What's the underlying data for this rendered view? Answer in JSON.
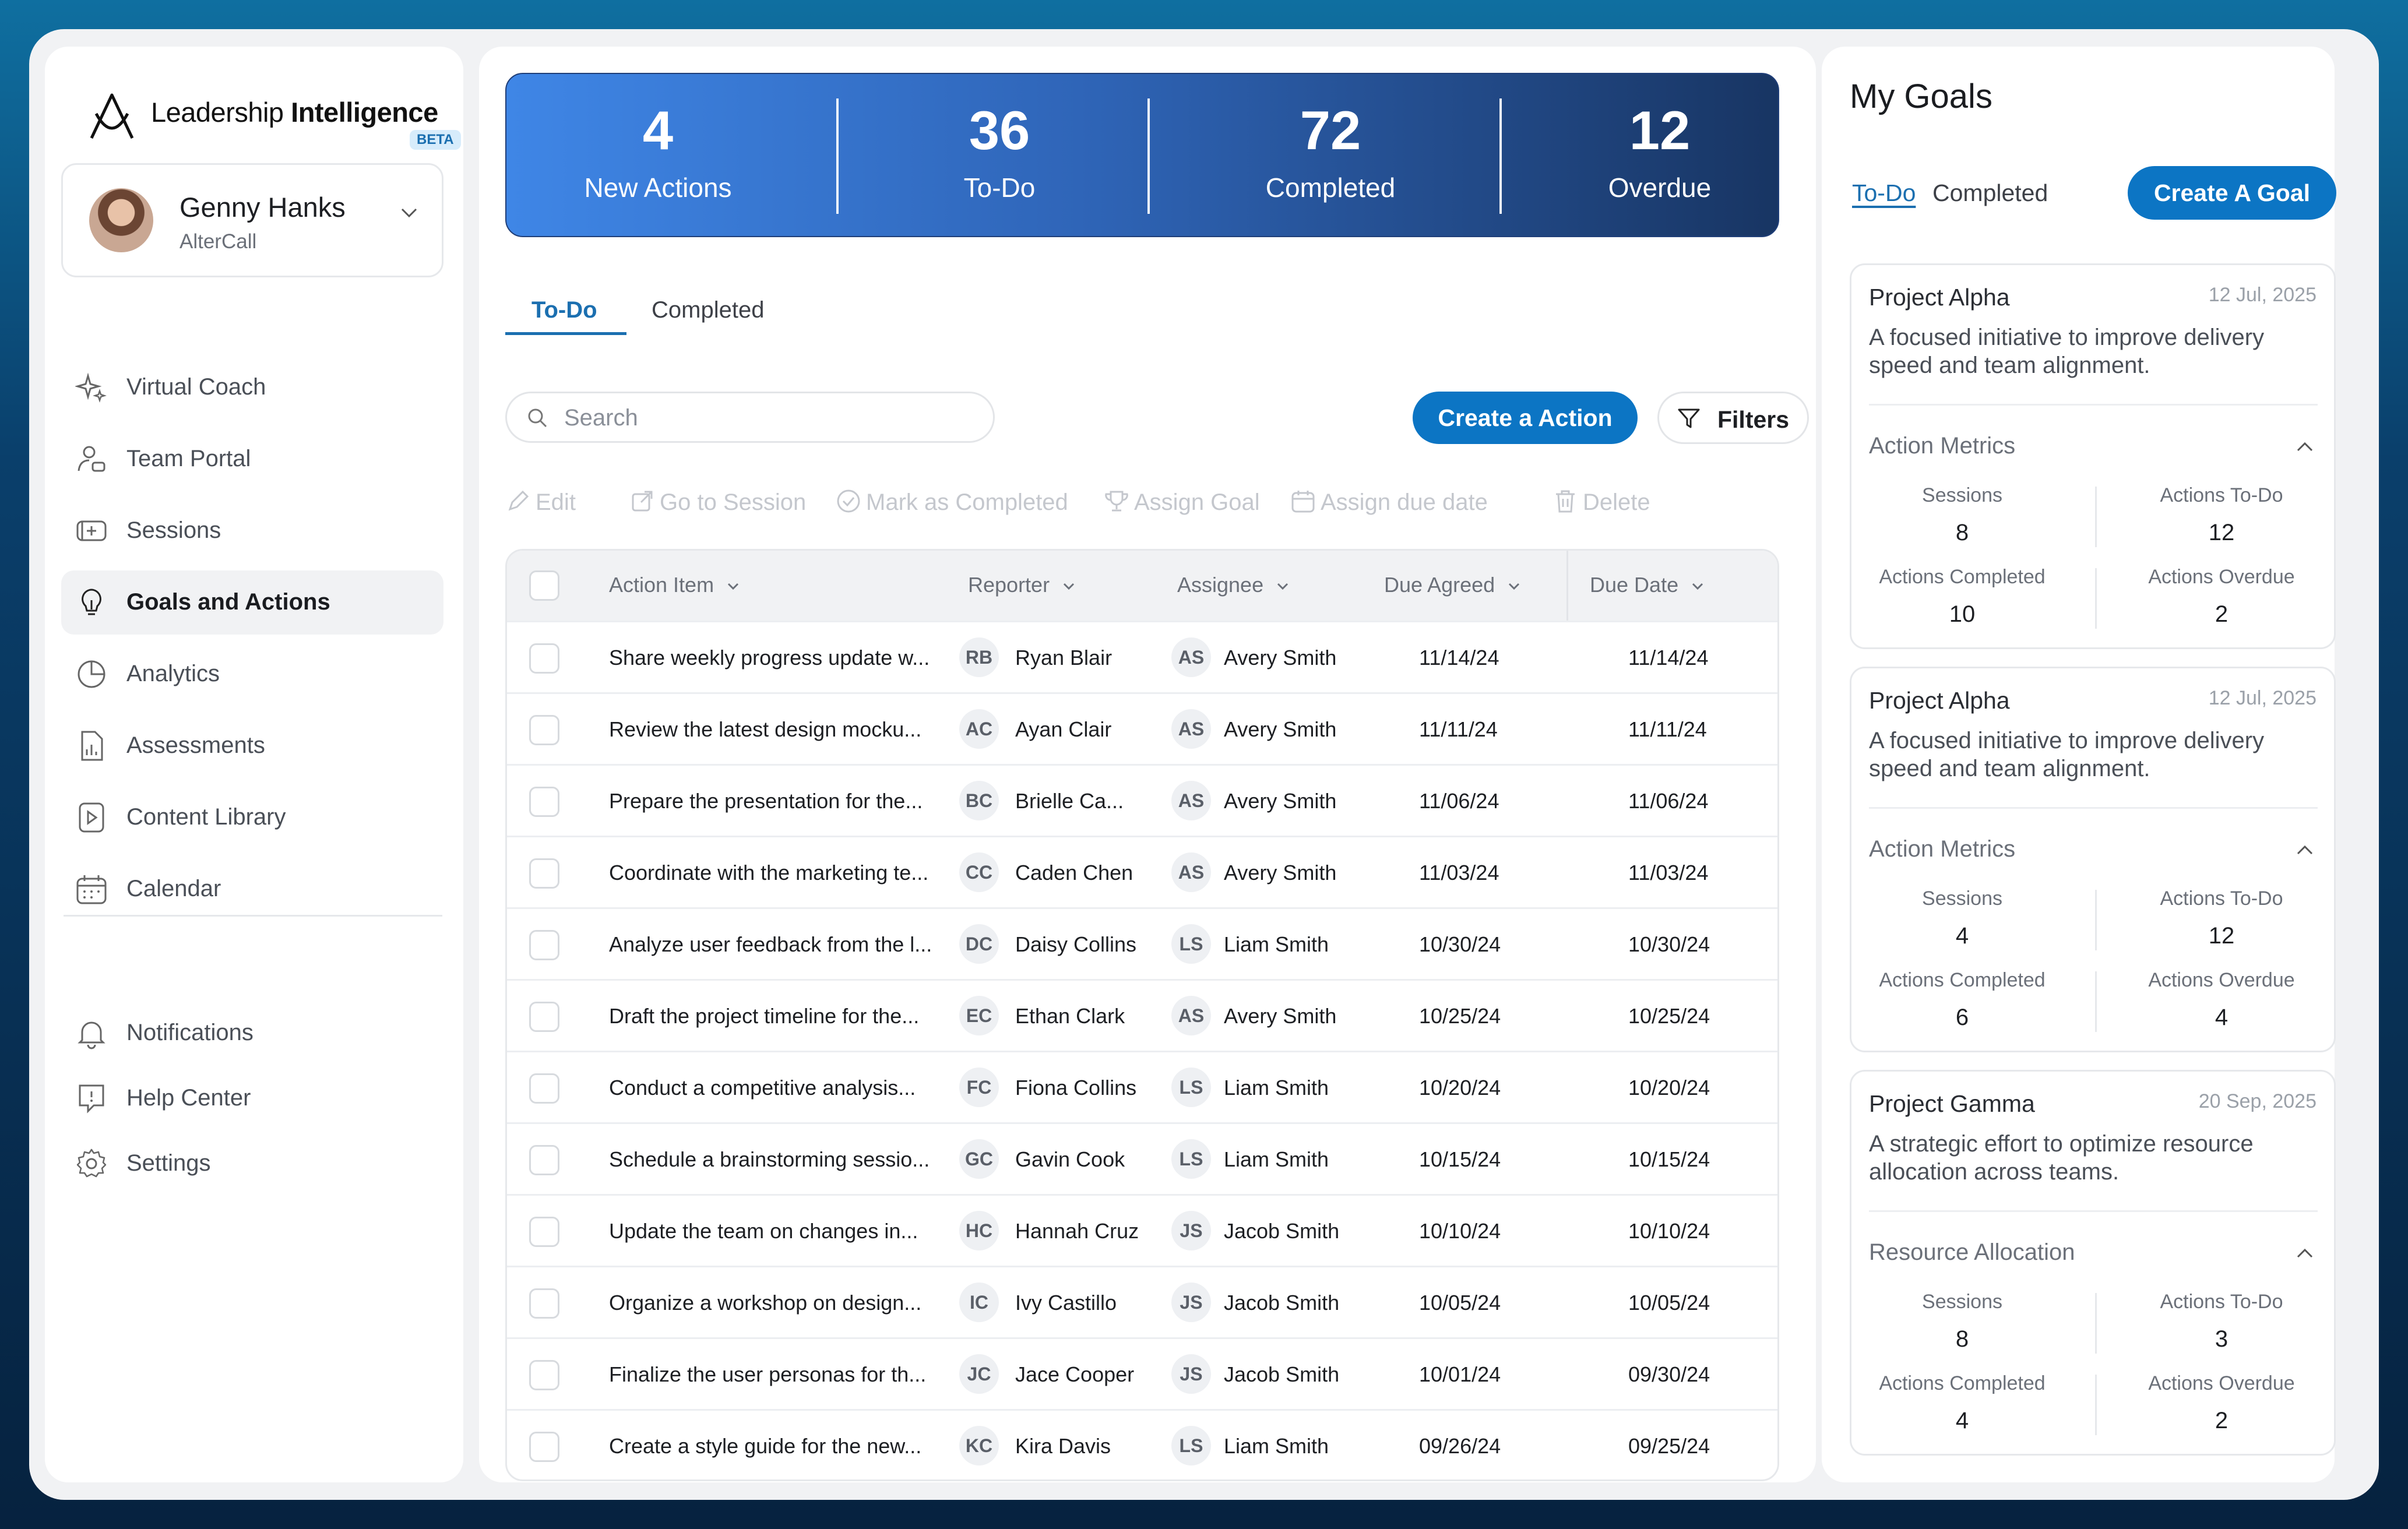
{
  "brand": {
    "name_regular": "Leadership ",
    "name_bold": "Intelligence",
    "badge": "BETA"
  },
  "profile": {
    "name": "Genny Hanks",
    "org": "AlterCall"
  },
  "nav": {
    "items": [
      {
        "label": "Virtual Coach",
        "icon": "sparkle-icon"
      },
      {
        "label": "Team Portal",
        "icon": "team-icon"
      },
      {
        "label": "Sessions",
        "icon": "video-icon"
      },
      {
        "label": "Goals and Actions",
        "icon": "lightbulb-icon",
        "active": true
      },
      {
        "label": "Analytics",
        "icon": "pie-chart-icon"
      },
      {
        "label": "Assessments",
        "icon": "document-chart-icon"
      },
      {
        "label": "Content Library",
        "icon": "play-file-icon"
      },
      {
        "label": "Calendar",
        "icon": "calendar-icon"
      }
    ],
    "footer_items": [
      {
        "label": "Notifications",
        "icon": "bell-icon"
      },
      {
        "label": "Help Center",
        "icon": "help-icon"
      },
      {
        "label": "Settings",
        "icon": "gear-icon"
      }
    ]
  },
  "stats": [
    {
      "value": "4",
      "label": "New Actions"
    },
    {
      "value": "36",
      "label": "To-Do"
    },
    {
      "value": "72",
      "label": "Completed"
    },
    {
      "value": "12",
      "label": "Overdue"
    }
  ],
  "tabs": {
    "todo": "To-Do",
    "completed": "Completed"
  },
  "search": {
    "placeholder": "Search"
  },
  "buttons": {
    "create_action": "Create a Action",
    "filters": "Filters",
    "create_goal": "Create A Goal"
  },
  "toolbar": {
    "edit": "Edit",
    "go_to_session": "Go to Session",
    "mark_completed": "Mark as Completed",
    "assign_goal": "Assign Goal",
    "assign_due_date": "Assign due date",
    "delete": "Delete"
  },
  "table": {
    "headers": {
      "action_item": "Action Item",
      "reporter": "Reporter",
      "assignee": "Assignee",
      "due_agreed": "Due Agreed",
      "due_date": "Due Date"
    },
    "rows": [
      {
        "action": "Share weekly progress update w...",
        "rep_initials": "RB",
        "reporter": "Ryan Blair",
        "asg_initials": "AS",
        "assignee": "Avery Smith",
        "due_agreed": "11/14/24",
        "due_date": "11/14/24"
      },
      {
        "action": "Review the latest design mocku...",
        "rep_initials": "AC",
        "reporter": "Ayan Clair",
        "asg_initials": "AS",
        "assignee": "Avery Smith",
        "due_agreed": "11/11/24",
        "due_date": "11/11/24"
      },
      {
        "action": "Prepare the presentation for the...",
        "rep_initials": "BC",
        "reporter": "Brielle Ca...",
        "asg_initials": "AS",
        "assignee": "Avery Smith",
        "due_agreed": "11/06/24",
        "due_date": "11/06/24"
      },
      {
        "action": "Coordinate with the marketing te...",
        "rep_initials": "CC",
        "reporter": "Caden Chen",
        "asg_initials": "AS",
        "assignee": "Avery Smith",
        "due_agreed": "11/03/24",
        "due_date": "11/03/24"
      },
      {
        "action": "Analyze user feedback from the l...",
        "rep_initials": "DC",
        "reporter": "Daisy Collins",
        "asg_initials": "LS",
        "assignee": "Liam Smith",
        "due_agreed": "10/30/24",
        "due_date": "10/30/24"
      },
      {
        "action": "Draft the project timeline for the...",
        "rep_initials": "EC",
        "reporter": "Ethan Clark",
        "asg_initials": "AS",
        "assignee": "Avery Smith",
        "due_agreed": "10/25/24",
        "due_date": "10/25/24"
      },
      {
        "action": "Conduct a competitive analysis...",
        "rep_initials": "FC",
        "reporter": "Fiona Collins",
        "asg_initials": "LS",
        "assignee": "Liam Smith",
        "due_agreed": "10/20/24",
        "due_date": "10/20/24"
      },
      {
        "action": "Schedule a brainstorming sessio...",
        "rep_initials": "GC",
        "reporter": "Gavin Cook",
        "asg_initials": "LS",
        "assignee": "Liam Smith",
        "due_agreed": "10/15/24",
        "due_date": "10/15/24"
      },
      {
        "action": "Update the team on changes in...",
        "rep_initials": "HC",
        "reporter": "Hannah Cruz",
        "asg_initials": "JS",
        "assignee": "Jacob Smith",
        "due_agreed": "10/10/24",
        "due_date": "10/10/24"
      },
      {
        "action": "Organize a workshop on design...",
        "rep_initials": "IC",
        "reporter": "Ivy Castillo",
        "asg_initials": "JS",
        "assignee": "Jacob Smith",
        "due_agreed": "10/05/24",
        "due_date": "10/05/24"
      },
      {
        "action": "Finalize the user personas for th...",
        "rep_initials": "JC",
        "reporter": "Jace Cooper",
        "asg_initials": "JS",
        "assignee": "Jacob Smith",
        "due_agreed": "10/01/24",
        "due_date": "09/30/24"
      },
      {
        "action": "Create a style guide for the new...",
        "rep_initials": "KC",
        "reporter": "Kira Davis",
        "asg_initials": "LS",
        "assignee": "Liam Smith",
        "due_agreed": "09/26/24",
        "due_date": "09/25/24"
      }
    ]
  },
  "goals": {
    "title": "My Goals",
    "tab_todo": "To-Do",
    "tab_completed": "Completed",
    "metric_labels": {
      "sessions": "Sessions",
      "todo": "Actions To-Do",
      "completed": "Actions Completed",
      "overdue": "Actions Overdue"
    },
    "cards": [
      {
        "title": "Project Alpha",
        "date": "12 Jul, 2025",
        "desc": "A focused initiative to improve delivery speed and team alignment.",
        "section": "Action Metrics",
        "sessions": "8",
        "todo": "12",
        "completed": "10",
        "overdue": "2"
      },
      {
        "title": "Project Alpha",
        "date": "12 Jul, 2025",
        "desc": "A focused initiative to improve delivery speed and team alignment.",
        "section": "Action Metrics",
        "sessions": "4",
        "todo": "12",
        "completed": "6",
        "overdue": "4"
      },
      {
        "title": "Project Gamma",
        "date": "20 Sep, 2025",
        "desc": "A strategic effort to optimize resource allocation across teams.",
        "section": "Resource Allocation",
        "sessions": "8",
        "todo": "3",
        "completed": "4",
        "overdue": "2"
      }
    ]
  },
  "colors": {
    "primary": "#0c75c4",
    "accent_text": "#1b6fb0",
    "stats_start": "#3f86e6",
    "stats_end": "#183563"
  }
}
